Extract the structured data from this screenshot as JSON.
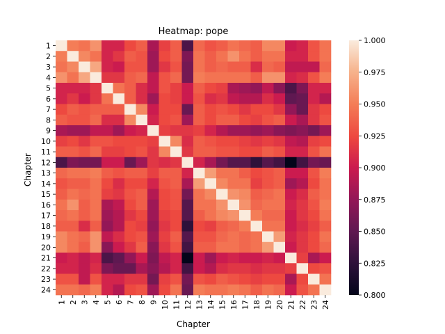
{
  "chart_data": {
    "type": "heatmap",
    "title": "Heatmap: pope",
    "xlabel": "Chapter",
    "ylabel": "Chapter",
    "x_categories": [
      "1",
      "2",
      "3",
      "4",
      "5",
      "6",
      "7",
      "8",
      "9",
      "10",
      "11",
      "12",
      "13",
      "14",
      "15",
      "16",
      "17",
      "18",
      "19",
      "20",
      "21",
      "22",
      "23",
      "24"
    ],
    "y_categories": [
      "1",
      "2",
      "3",
      "4",
      "5",
      "6",
      "7",
      "8",
      "9",
      "10",
      "11",
      "12",
      "13",
      "14",
      "15",
      "16",
      "17",
      "18",
      "19",
      "20",
      "21",
      "22",
      "23",
      "24"
    ],
    "value_range": [
      0.8,
      1.0
    ],
    "colorbar_ticks": [
      "1.000",
      "0.975",
      "0.950",
      "0.925",
      "0.900",
      "0.875",
      "0.850",
      "0.825",
      "0.800"
    ],
    "colormap": "rocket",
    "grid": false,
    "matrix": [
      [
        1.0,
        0.95,
        0.945,
        0.96,
        0.905,
        0.905,
        0.925,
        0.935,
        0.885,
        0.92,
        0.935,
        0.84,
        0.94,
        0.93,
        0.935,
        0.945,
        0.94,
        0.935,
        0.955,
        0.955,
        0.9,
        0.905,
        0.93,
        0.945
      ],
      [
        0.95,
        1.0,
        0.955,
        0.945,
        0.905,
        0.915,
        0.935,
        0.93,
        0.88,
        0.925,
        0.935,
        0.865,
        0.945,
        0.935,
        0.945,
        0.96,
        0.945,
        0.935,
        0.945,
        0.945,
        0.905,
        0.905,
        0.93,
        0.945
      ],
      [
        0.945,
        0.955,
        1.0,
        0.97,
        0.905,
        0.9,
        0.93,
        0.93,
        0.88,
        0.915,
        0.93,
        0.86,
        0.945,
        0.935,
        0.94,
        0.935,
        0.935,
        0.91,
        0.94,
        0.935,
        0.895,
        0.895,
        0.895,
        0.94
      ],
      [
        0.96,
        0.945,
        0.97,
        1.0,
        0.915,
        0.915,
        0.935,
        0.94,
        0.895,
        0.93,
        0.94,
        0.86,
        0.95,
        0.945,
        0.945,
        0.945,
        0.945,
        0.935,
        0.96,
        0.96,
        0.905,
        0.91,
        0.93,
        0.95
      ],
      [
        0.905,
        0.905,
        0.905,
        0.915,
        1.0,
        0.945,
        0.935,
        0.91,
        0.895,
        0.93,
        0.92,
        0.9,
        0.935,
        0.925,
        0.92,
        0.885,
        0.88,
        0.875,
        0.895,
        0.87,
        0.84,
        0.865,
        0.905,
        0.905
      ],
      [
        0.905,
        0.915,
        0.9,
        0.915,
        0.945,
        1.0,
        0.935,
        0.91,
        0.88,
        0.925,
        0.92,
        0.9,
        0.93,
        0.91,
        0.915,
        0.895,
        0.89,
        0.89,
        0.91,
        0.9,
        0.85,
        0.855,
        0.905,
        0.89
      ],
      [
        0.925,
        0.935,
        0.93,
        0.935,
        0.935,
        0.935,
        1.0,
        0.955,
        0.9,
        0.925,
        0.925,
        0.855,
        0.935,
        0.925,
        0.93,
        0.925,
        0.915,
        0.925,
        0.925,
        0.915,
        0.875,
        0.855,
        0.915,
        0.925
      ],
      [
        0.935,
        0.93,
        0.93,
        0.94,
        0.91,
        0.91,
        0.955,
        1.0,
        0.905,
        0.925,
        0.93,
        0.88,
        0.935,
        0.925,
        0.935,
        0.935,
        0.925,
        0.92,
        0.93,
        0.935,
        0.9,
        0.885,
        0.915,
        0.93
      ],
      [
        0.885,
        0.88,
        0.88,
        0.895,
        0.895,
        0.88,
        0.9,
        0.905,
        1.0,
        0.92,
        0.915,
        0.915,
        0.92,
        0.905,
        0.89,
        0.88,
        0.88,
        0.875,
        0.88,
        0.87,
        0.865,
        0.87,
        0.86,
        0.88
      ],
      [
        0.92,
        0.925,
        0.915,
        0.93,
        0.93,
        0.925,
        0.925,
        0.925,
        0.92,
        1.0,
        0.955,
        0.91,
        0.935,
        0.93,
        0.925,
        0.925,
        0.92,
        0.915,
        0.92,
        0.915,
        0.895,
        0.89,
        0.92,
        0.925
      ],
      [
        0.935,
        0.935,
        0.93,
        0.94,
        0.92,
        0.92,
        0.925,
        0.93,
        0.915,
        0.955,
        1.0,
        0.915,
        0.935,
        0.935,
        0.93,
        0.93,
        0.925,
        0.925,
        0.935,
        0.93,
        0.905,
        0.905,
        0.93,
        0.945
      ],
      [
        0.84,
        0.865,
        0.86,
        0.86,
        0.9,
        0.9,
        0.855,
        0.88,
        0.915,
        0.91,
        0.915,
        1.0,
        0.905,
        0.885,
        0.86,
        0.845,
        0.845,
        0.825,
        0.845,
        0.835,
        0.8,
        0.835,
        0.86,
        0.855
      ],
      [
        0.94,
        0.945,
        0.945,
        0.95,
        0.935,
        0.93,
        0.935,
        0.935,
        0.92,
        0.935,
        0.935,
        0.905,
        1.0,
        0.965,
        0.945,
        0.945,
        0.935,
        0.925,
        0.93,
        0.935,
        0.9,
        0.9,
        0.93,
        0.95
      ],
      [
        0.93,
        0.935,
        0.935,
        0.945,
        0.925,
        0.91,
        0.925,
        0.925,
        0.905,
        0.93,
        0.935,
        0.885,
        0.965,
        1.0,
        0.955,
        0.945,
        0.945,
        0.92,
        0.93,
        0.935,
        0.88,
        0.89,
        0.925,
        0.945
      ],
      [
        0.935,
        0.945,
        0.94,
        0.945,
        0.92,
        0.915,
        0.93,
        0.935,
        0.89,
        0.925,
        0.93,
        0.86,
        0.945,
        0.955,
        1.0,
        0.96,
        0.955,
        0.935,
        0.94,
        0.945,
        0.9,
        0.91,
        0.935,
        0.945
      ],
      [
        0.945,
        0.96,
        0.935,
        0.945,
        0.885,
        0.895,
        0.925,
        0.935,
        0.88,
        0.925,
        0.93,
        0.845,
        0.945,
        0.945,
        0.96,
        1.0,
        0.96,
        0.94,
        0.945,
        0.945,
        0.905,
        0.915,
        0.93,
        0.95
      ],
      [
        0.94,
        0.945,
        0.935,
        0.945,
        0.88,
        0.89,
        0.915,
        0.925,
        0.88,
        0.92,
        0.925,
        0.845,
        0.935,
        0.945,
        0.955,
        0.96,
        1.0,
        0.95,
        0.94,
        0.94,
        0.9,
        0.915,
        0.925,
        0.945
      ],
      [
        0.935,
        0.935,
        0.91,
        0.935,
        0.875,
        0.89,
        0.925,
        0.92,
        0.875,
        0.915,
        0.925,
        0.825,
        0.925,
        0.92,
        0.935,
        0.94,
        0.95,
        1.0,
        0.945,
        0.945,
        0.9,
        0.91,
        0.92,
        0.935
      ],
      [
        0.955,
        0.945,
        0.94,
        0.96,
        0.895,
        0.91,
        0.925,
        0.93,
        0.88,
        0.92,
        0.935,
        0.845,
        0.93,
        0.93,
        0.94,
        0.945,
        0.94,
        0.945,
        1.0,
        0.965,
        0.905,
        0.915,
        0.925,
        0.945
      ],
      [
        0.955,
        0.945,
        0.935,
        0.96,
        0.87,
        0.9,
        0.915,
        0.935,
        0.87,
        0.915,
        0.93,
        0.835,
        0.935,
        0.935,
        0.945,
        0.945,
        0.94,
        0.945,
        0.965,
        1.0,
        0.9,
        0.915,
        0.925,
        0.94
      ],
      [
        0.9,
        0.905,
        0.895,
        0.905,
        0.84,
        0.85,
        0.875,
        0.9,
        0.865,
        0.895,
        0.905,
        0.8,
        0.9,
        0.88,
        0.9,
        0.905,
        0.9,
        0.9,
        0.905,
        0.9,
        1.0,
        0.92,
        0.885,
        0.9
      ],
      [
        0.905,
        0.905,
        0.895,
        0.91,
        0.865,
        0.855,
        0.855,
        0.885,
        0.87,
        0.89,
        0.905,
        0.835,
        0.9,
        0.89,
        0.91,
        0.915,
        0.915,
        0.91,
        0.915,
        0.915,
        0.92,
        1.0,
        0.925,
        0.93
      ],
      [
        0.93,
        0.93,
        0.895,
        0.93,
        0.905,
        0.905,
        0.915,
        0.915,
        0.86,
        0.92,
        0.93,
        0.86,
        0.93,
        0.925,
        0.935,
        0.93,
        0.925,
        0.92,
        0.925,
        0.925,
        0.885,
        0.925,
        1.0,
        0.945
      ],
      [
        0.945,
        0.945,
        0.94,
        0.95,
        0.905,
        0.89,
        0.925,
        0.93,
        0.88,
        0.925,
        0.945,
        0.855,
        0.95,
        0.945,
        0.945,
        0.95,
        0.945,
        0.935,
        0.945,
        0.94,
        0.9,
        0.93,
        0.945,
        1.0
      ]
    ]
  }
}
